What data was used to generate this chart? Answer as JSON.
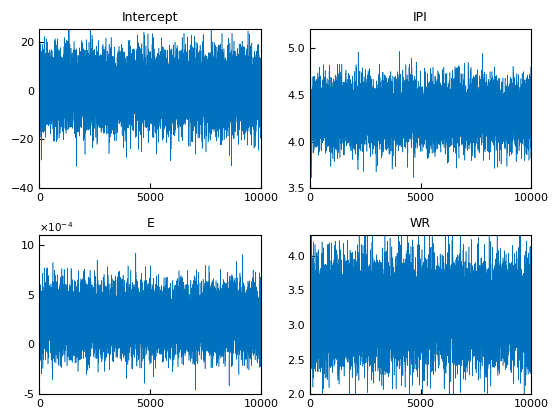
{
  "titles": [
    "Intercept",
    "IPI",
    "E",
    "WR"
  ],
  "n_points": 10000,
  "intercept": {
    "mean": 0,
    "std": 8,
    "ylim": [
      -40,
      25
    ],
    "yticks": [
      -40,
      -20,
      0,
      20
    ]
  },
  "ipi": {
    "mean": 4.3,
    "std": 0.18,
    "ylim": [
      3.5,
      5.2
    ],
    "yticks": [
      3.5,
      4.0,
      4.5,
      5.0
    ]
  },
  "e": {
    "mean": 0.00025,
    "std": 0.00018,
    "ylim": [
      -0.0005,
      0.0011
    ],
    "yticks": [
      -0.0005,
      0,
      0.0005,
      0.001
    ],
    "scale": 0.0001
  },
  "wr": {
    "mean": 3.2,
    "std": 0.38,
    "ylim": [
      2.0,
      4.3
    ],
    "yticks": [
      2.0,
      2.5,
      3.0,
      3.5,
      4.0
    ]
  },
  "line_color": "#0072BD",
  "bg_color": "#FFFFFF",
  "xlim": [
    0,
    10000
  ],
  "xticks": [
    0,
    5000,
    10000
  ]
}
